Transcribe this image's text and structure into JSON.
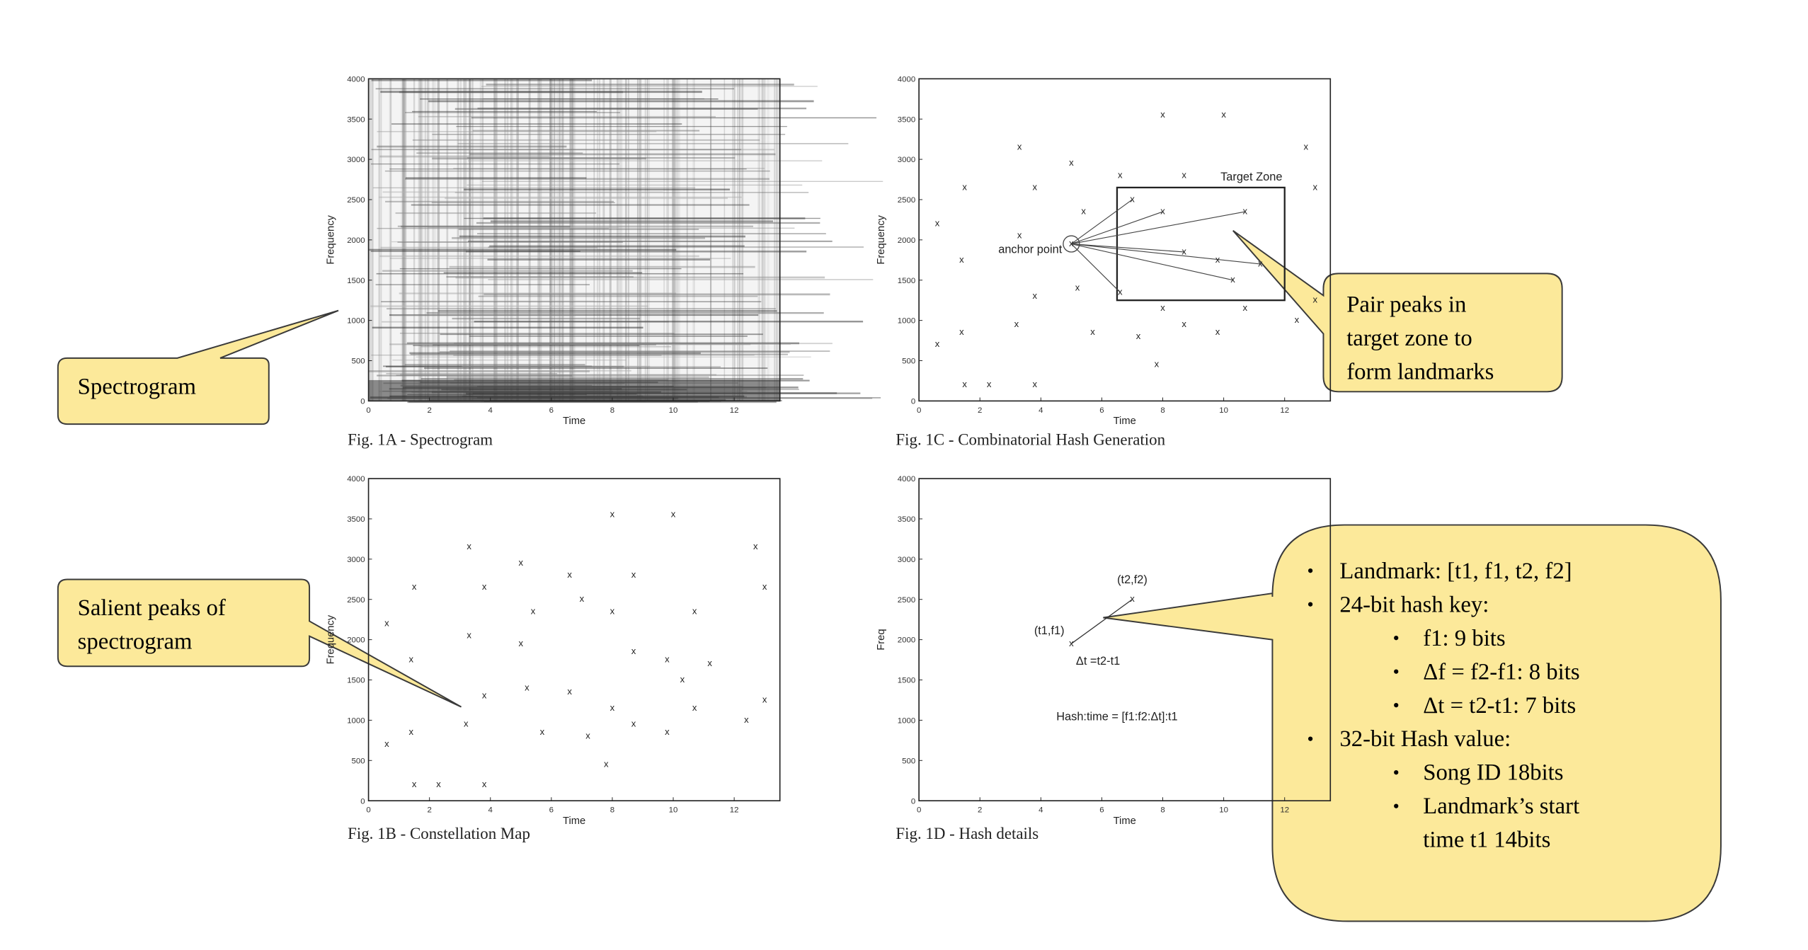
{
  "callouts": {
    "spectrogram": "Spectrogram",
    "salient": [
      "Salient peaks of",
      "spectrogram"
    ],
    "pair": [
      "Pair peaks in",
      "target zone to",
      "form landmarks"
    ]
  },
  "details": [
    {
      "level": 1,
      "text": "Landmark: [t1, f1, t2, f2]"
    },
    {
      "level": 1,
      "text": "24-bit hash key:"
    },
    {
      "level": 2,
      "text": "f1: 9 bits"
    },
    {
      "level": 2,
      "text": "Δf = f2-f1: 8 bits"
    },
    {
      "level": 2,
      "text": "Δt = t2-t1: 7 bits"
    },
    {
      "level": 1,
      "text": "32-bit Hash value:"
    },
    {
      "level": 2,
      "text": "Song ID  18bits"
    },
    {
      "level": 2,
      "text": "Landmark’s   start"
    },
    {
      "level": 3,
      "text": "time t1 14bits"
    }
  ],
  "figures": {
    "a": {
      "caption": "Fig. 1A - Spectrogram",
      "xlabel": "Time",
      "ylabel": "Frequency"
    },
    "b": {
      "caption": "Fig. 1B - Constellation Map",
      "xlabel": "Time",
      "ylabel": "Frequency"
    },
    "c": {
      "caption": "Fig. 1C - Combinatorial Hash Generation",
      "xlabel": "Time",
      "ylabel": "Frequency",
      "anchor_label": "anchor point",
      "zone_label": "Target Zone"
    },
    "d": {
      "caption": "Fig. 1D - Hash details",
      "xlabel": "Time",
      "ylabel": "Freq",
      "p1_label": "(t1,f1)",
      "p2_label": "(t2,f2)",
      "dt_label": "Δt =t2-t1",
      "hash_label": "Hash:time = [f1:f2:Δt]:t1"
    }
  },
  "chart_data": [
    {
      "type": "scatter",
      "title": "Fig. 1B - Constellation Map",
      "xlabel": "Time",
      "ylabel": "Frequency",
      "xlim": [
        0,
        13.5
      ],
      "ylim": [
        0,
        4000
      ],
      "xticks": [
        0,
        2,
        4,
        6,
        8,
        10,
        12
      ],
      "yticks": [
        0,
        500,
        1000,
        1500,
        2000,
        2500,
        3000,
        3500,
        4000
      ],
      "marker": "x",
      "points": [
        [
          0.6,
          2200
        ],
        [
          0.6,
          700
        ],
        [
          1.4,
          1750
        ],
        [
          1.4,
          850
        ],
        [
          1.5,
          2650
        ],
        [
          1.5,
          200
        ],
        [
          2.3,
          200
        ],
        [
          3.3,
          3150
        ],
        [
          3.3,
          2050
        ],
        [
          3.2,
          950
        ],
        [
          3.8,
          2650
        ],
        [
          3.8,
          1300
        ],
        [
          3.8,
          200
        ],
        [
          5.0,
          2950
        ],
        [
          5.0,
          1950
        ],
        [
          5.2,
          1400
        ],
        [
          5.4,
          2350
        ],
        [
          5.7,
          850
        ],
        [
          6.6,
          2800
        ],
        [
          6.6,
          1350
        ],
        [
          7.0,
          2500
        ],
        [
          7.2,
          800
        ],
        [
          7.8,
          450
        ],
        [
          8.0,
          3550
        ],
        [
          8.0,
          2350
        ],
        [
          8.0,
          1150
        ],
        [
          8.7,
          2800
        ],
        [
          8.7,
          1850
        ],
        [
          8.7,
          950
        ],
        [
          9.8,
          1750
        ],
        [
          9.8,
          850
        ],
        [
          10.0,
          3550
        ],
        [
          10.3,
          1500
        ],
        [
          10.7,
          2350
        ],
        [
          10.7,
          1150
        ],
        [
          11.2,
          1700
        ],
        [
          12.4,
          1000
        ],
        [
          12.7,
          3150
        ],
        [
          13.0,
          2650
        ],
        [
          13.0,
          1250
        ]
      ]
    },
    {
      "type": "scatter",
      "title": "Fig. 1C - Combinatorial Hash Generation",
      "xlabel": "Time",
      "ylabel": "Frequency",
      "xlim": [
        0,
        13.5
      ],
      "ylim": [
        0,
        4000
      ],
      "xticks": [
        0,
        2,
        4,
        6,
        8,
        10,
        12
      ],
      "yticks": [
        0,
        500,
        1000,
        1500,
        2000,
        2500,
        3000,
        3500,
        4000
      ],
      "marker": "x",
      "anchor": [
        5.0,
        1950
      ],
      "target_zone": {
        "t": [
          6.5,
          12.0
        ],
        "f": [
          1250,
          2650
        ]
      },
      "paired": [
        [
          7.0,
          2500
        ],
        [
          8.0,
          2350
        ],
        [
          10.7,
          2350
        ],
        [
          8.7,
          1850
        ],
        [
          11.2,
          1700
        ],
        [
          10.3,
          1500
        ],
        [
          6.6,
          1350
        ]
      ],
      "points": [
        [
          0.6,
          2200
        ],
        [
          0.6,
          700
        ],
        [
          1.4,
          1750
        ],
        [
          1.4,
          850
        ],
        [
          1.5,
          2650
        ],
        [
          1.5,
          200
        ],
        [
          2.3,
          200
        ],
        [
          3.3,
          3150
        ],
        [
          3.3,
          2050
        ],
        [
          3.2,
          950
        ],
        [
          3.8,
          2650
        ],
        [
          3.8,
          1300
        ],
        [
          3.8,
          200
        ],
        [
          5.0,
          2950
        ],
        [
          5.0,
          1950
        ],
        [
          5.2,
          1400
        ],
        [
          5.4,
          2350
        ],
        [
          5.7,
          850
        ],
        [
          6.6,
          2800
        ],
        [
          6.6,
          1350
        ],
        [
          7.0,
          2500
        ],
        [
          7.2,
          800
        ],
        [
          7.8,
          450
        ],
        [
          8.0,
          3550
        ],
        [
          8.0,
          2350
        ],
        [
          8.0,
          1150
        ],
        [
          8.7,
          2800
        ],
        [
          8.7,
          1850
        ],
        [
          8.7,
          950
        ],
        [
          9.8,
          1750
        ],
        [
          9.8,
          850
        ],
        [
          10.0,
          3550
        ],
        [
          10.3,
          1500
        ],
        [
          10.7,
          2350
        ],
        [
          10.7,
          1150
        ],
        [
          11.2,
          1700
        ],
        [
          12.4,
          1000
        ],
        [
          12.7,
          3150
        ],
        [
          13.0,
          2650
        ],
        [
          13.0,
          1250
        ]
      ]
    },
    {
      "type": "line",
      "title": "Fig. 1D - Hash details",
      "xlabel": "Time",
      "ylabel": "Freq",
      "xlim": [
        0,
        13.5
      ],
      "ylim": [
        0,
        4000
      ],
      "xticks": [
        0,
        2,
        4,
        6,
        8,
        10,
        12
      ],
      "yticks": [
        0,
        500,
        1000,
        1500,
        2000,
        2500,
        3000,
        3500,
        4000
      ],
      "points": [
        [
          5.0,
          1950
        ],
        [
          7.0,
          2500
        ]
      ]
    }
  ],
  "spectrogram_axes": {
    "xlim": [
      0,
      13.5
    ],
    "ylim": [
      0,
      4000
    ],
    "xticks": [
      0,
      2,
      4,
      6,
      8,
      10,
      12
    ],
    "yticks": [
      0,
      500,
      1000,
      1500,
      2000,
      2500,
      3000,
      3500,
      4000
    ]
  },
  "colors": {
    "callout_fill": "#fce99a",
    "callout_stroke": "#3a3a3a",
    "axis": "#222222"
  }
}
